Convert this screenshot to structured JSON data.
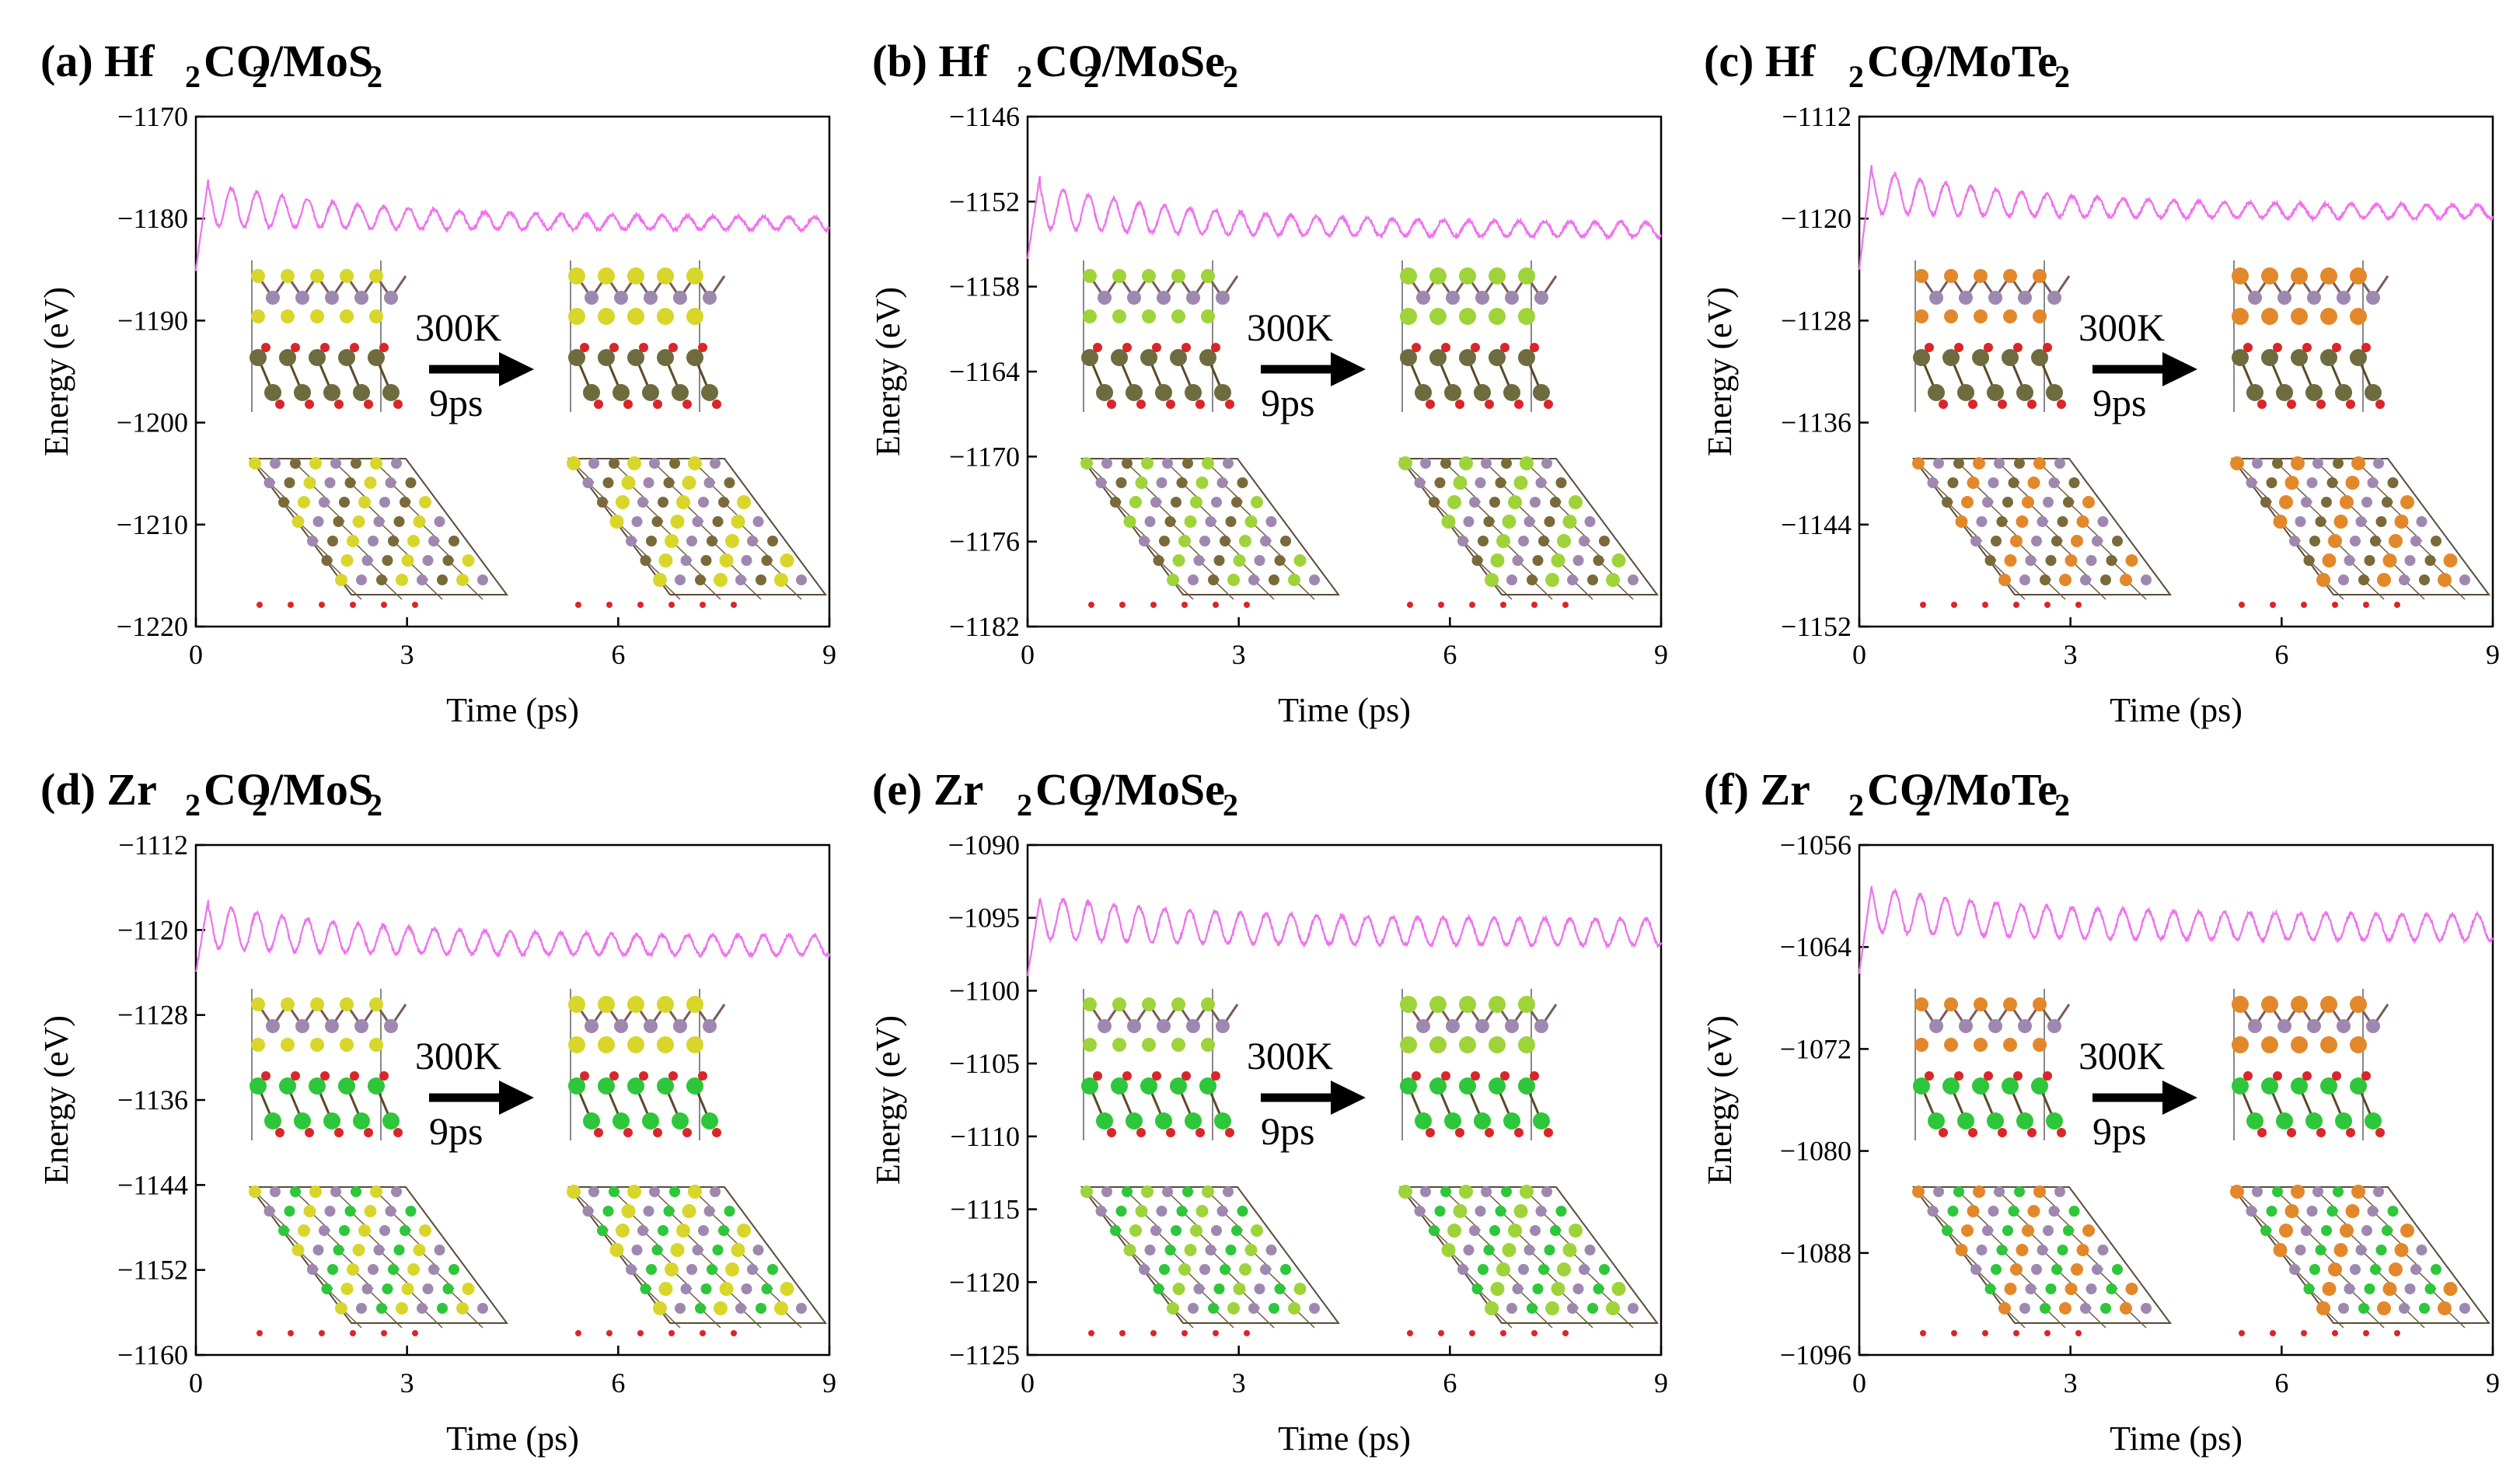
{
  "figure": {
    "arrow_top_label": "300K",
    "arrow_bottom_label": "9ps"
  },
  "chart_data": [
    {
      "panel": "(a)",
      "title_parts": [
        "(a) Hf",
        "2",
        "CO",
        "2",
        "/MoS",
        "2"
      ],
      "type": "line",
      "xlabel": "Time (ps)",
      "ylabel": "Energy (eV)",
      "xlim": [
        0,
        9
      ],
      "ylim": [
        -1220,
        -1170
      ],
      "xticks": [
        0,
        3,
        6,
        9
      ],
      "yticks": [
        -1170,
        -1180,
        -1190,
        -1200,
        -1210,
        -1220
      ],
      "series": [
        {
          "name": "Energy",
          "color": "#ee72ee",
          "start": -1185,
          "peak": -1176,
          "mean_final": -1180.5,
          "amp": 2.2,
          "amp_final": 0.6
        }
      ],
      "colors": {
        "chalcogen": "#d8d62a",
        "hf": "#6e6b3f",
        "metal_layer_color": "#7a6a3a"
      }
    },
    {
      "panel": "(b)",
      "title_parts": [
        "(b) Hf",
        "2",
        "CO",
        "2",
        "/MoSe",
        "2"
      ],
      "type": "line",
      "xlabel": "Time (ps)",
      "ylabel": "Energy (eV)",
      "xlim": [
        0,
        9
      ],
      "ylim": [
        -1182,
        -1146
      ],
      "xticks": [
        0,
        3,
        6,
        9
      ],
      "yticks": [
        -1146,
        -1152,
        -1158,
        -1164,
        -1170,
        -1176,
        -1182
      ],
      "series": [
        {
          "name": "Energy",
          "color": "#ee72ee",
          "start": -1156,
          "peak": -1150,
          "mean_final": -1154,
          "amp": 1.6,
          "amp_final": 0.5
        }
      ],
      "colors": {
        "chalcogen": "#9fd33a",
        "hf": "#6e6b3f",
        "metal_layer_color": "#7a6a3a"
      }
    },
    {
      "panel": "(c)",
      "title_parts": [
        "(c) Hf",
        "2",
        "CO",
        "2",
        "/MoTe",
        "2"
      ],
      "type": "line",
      "xlabel": "Time (ps)",
      "ylabel": "Energy (eV)",
      "xlim": [
        0,
        9
      ],
      "ylim": [
        -1152,
        -1112
      ],
      "xticks": [
        0,
        3,
        6,
        9
      ],
      "yticks": [
        -1112,
        -1120,
        -1128,
        -1136,
        -1144,
        -1152
      ],
      "series": [
        {
          "name": "Energy",
          "color": "#ee72ee",
          "start": -1124,
          "peak": -1115.5,
          "mean_final": -1119.5,
          "amp": 1.8,
          "amp_final": 0.5
        }
      ],
      "colors": {
        "chalcogen": "#e3882a",
        "hf": "#6e6b3f",
        "metal_layer_color": "#7a6a3a"
      }
    },
    {
      "panel": "(d)",
      "title_parts": [
        "(d) Zr",
        "2",
        "CO",
        "2",
        "/MoS",
        "2"
      ],
      "type": "line",
      "xlabel": "Time (ps)",
      "ylabel": "Energy (eV)",
      "xlim": [
        0,
        9
      ],
      "ylim": [
        -1160,
        -1112
      ],
      "xticks": [
        0,
        3,
        6,
        9
      ],
      "yticks": [
        -1112,
        -1120,
        -1128,
        -1136,
        -1144,
        -1152,
        -1160
      ],
      "series": [
        {
          "name": "Energy",
          "color": "#ee72ee",
          "start": -1124,
          "peak": -1117,
          "mean_final": -1121.5,
          "amp": 2.2,
          "amp_final": 0.9
        }
      ],
      "colors": {
        "chalcogen": "#d8d62a",
        "hf": "#2ec63a",
        "metal_layer_color": "#2ec63a"
      }
    },
    {
      "panel": "(e)",
      "title_parts": [
        "(e) Zr",
        "2",
        "CO",
        "2",
        "/MoSe",
        "2"
      ],
      "type": "line",
      "xlabel": "Time (ps)",
      "ylabel": "Energy (eV)",
      "xlim": [
        0,
        9
      ],
      "ylim": [
        -1125,
        -1090
      ],
      "xticks": [
        0,
        3,
        6,
        9
      ],
      "yticks": [
        -1090,
        -1095,
        -1100,
        -1105,
        -1110,
        -1115,
        -1120,
        -1125
      ],
      "series": [
        {
          "name": "Energy",
          "color": "#ee72ee",
          "start": -1099,
          "peak": -1093.5,
          "mean_final": -1096,
          "amp": 1.5,
          "amp_final": 0.9
        }
      ],
      "colors": {
        "chalcogen": "#9fd33a",
        "hf": "#2ec63a",
        "metal_layer_color": "#2ec63a"
      }
    },
    {
      "panel": "(f)",
      "title_parts": [
        "(f) Zr",
        "2",
        "CO",
        "2",
        "/MoTe",
        "2"
      ],
      "type": "line",
      "xlabel": "Time (ps)",
      "ylabel": "Energy (eV)",
      "xlim": [
        0,
        9
      ],
      "ylim": [
        -1096,
        -1056
      ],
      "xticks": [
        0,
        3,
        6,
        9
      ],
      "yticks": [
        -1056,
        -1064,
        -1072,
        -1080,
        -1088,
        -1096
      ],
      "series": [
        {
          "name": "Energy",
          "color": "#ee72ee",
          "start": -1066,
          "peak": -1059,
          "mean_final": -1062.5,
          "amp": 1.8,
          "amp_final": 1.0
        }
      ],
      "colors": {
        "chalcogen": "#e3882a",
        "hf": "#2ec63a",
        "metal_layer_color": "#2ec63a"
      }
    }
  ]
}
